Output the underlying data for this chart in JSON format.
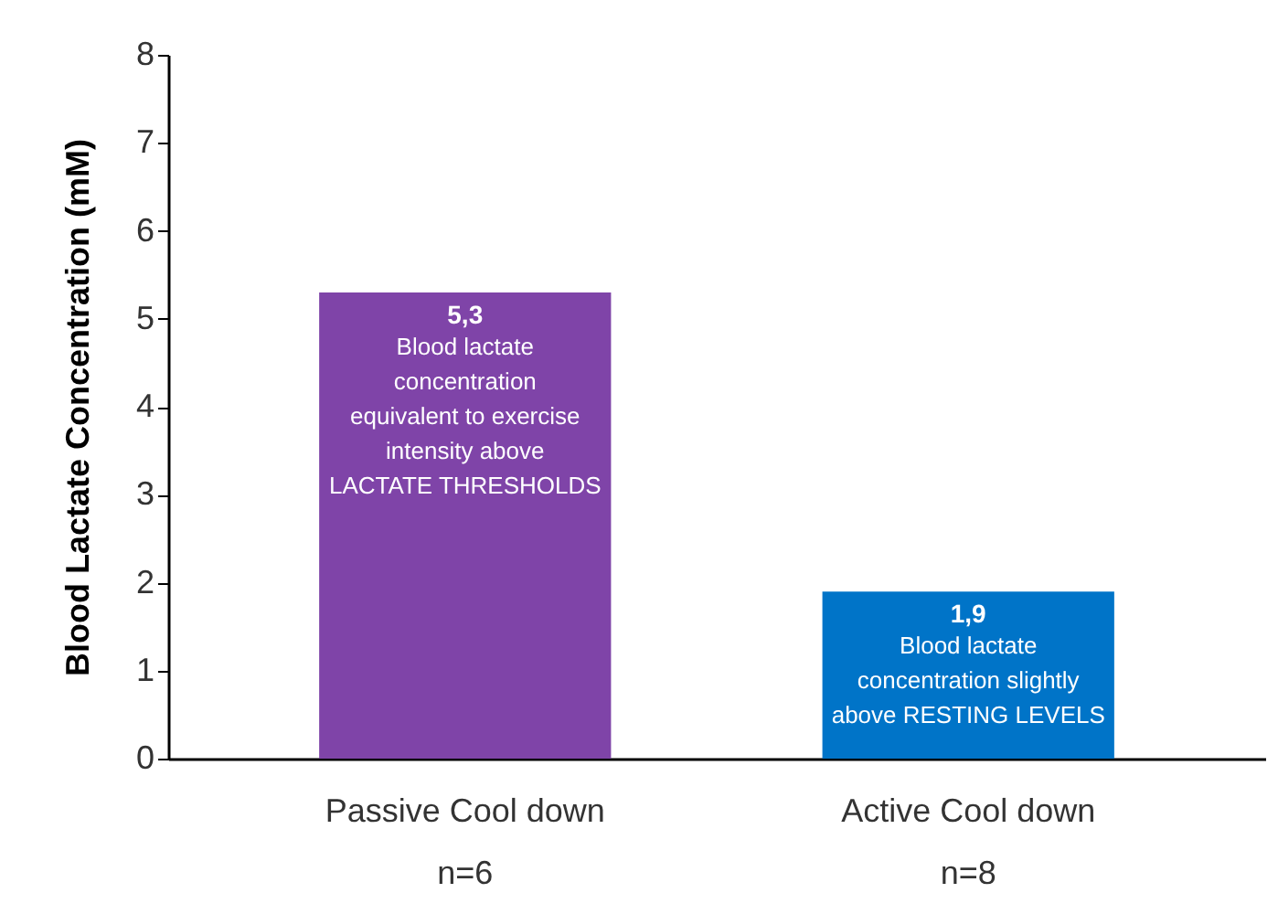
{
  "chart_data": {
    "type": "bar",
    "ylabel": "Blood Lactate Concentration (mM)",
    "categories": [
      "Passive Cool down\nn=6",
      "Active Cool down\nn=8"
    ],
    "values": [
      5.3,
      1.9
    ],
    "colors": [
      "#7f44a8",
      "#0074c8"
    ],
    "value_labels": [
      "5,3",
      "1,9"
    ],
    "annotations": [
      {
        "text": "Blood lactate\nconcentration\nequivalent to exercise\nintensity above\nLACTATE THRESHOLDS",
        "x": "Passive Cool down\nn=6",
        "y": 5.3
      },
      {
        "text": "Blood lactate\nconcentration slightly\nabove RESTING LEVELS",
        "x": "Active Cool down\nn=8",
        "y": 1.9
      }
    ],
    "ylim": [
      0,
      8
    ],
    "yticks": [
      0,
      1,
      2,
      3,
      4,
      5,
      6,
      7,
      8
    ],
    "grid": false
  }
}
